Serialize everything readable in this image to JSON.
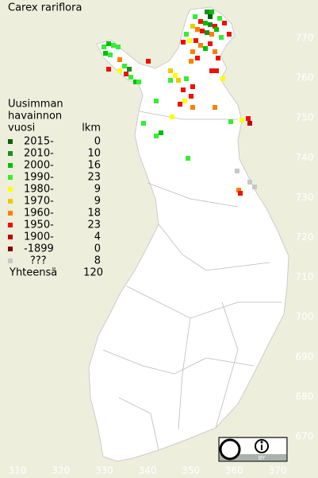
{
  "map": {
    "title": "Carex rariflora",
    "legend_heading": [
      "Uusimman",
      "havainnon"
    ],
    "legend_col_label": "vuosi",
    "legend_col_count": "lkm",
    "legend": [
      {
        "label": "2015-",
        "count": 0,
        "color": "#006400"
      },
      {
        "label": "2010-",
        "count": 10,
        "color": "#1e8c1e"
      },
      {
        "label": "2000-",
        "count": 16,
        "color": "#00c000"
      },
      {
        "label": "1990-",
        "count": 23,
        "color": "#33ee33"
      },
      {
        "label": "1980-",
        "count": 9,
        "color": "#ffff00"
      },
      {
        "label": "1970-",
        "count": 9,
        "color": "#f0c800"
      },
      {
        "label": "1960-",
        "count": 18,
        "color": "#ff7f00"
      },
      {
        "label": "1950-",
        "count": 23,
        "color": "#ee1100"
      },
      {
        "label": "1900-",
        "count": 4,
        "color": "#c00000"
      },
      {
        "label": "-1899",
        "count": 0,
        "color": "#800000"
      },
      {
        "label": "???",
        "count": 8,
        "color": "#c8c8c8"
      }
    ],
    "total_label": "Yhteensä",
    "total": 120,
    "x_labels": [
      310,
      320,
      330,
      340,
      350,
      360,
      370
    ],
    "y_labels": [
      770,
      760,
      750,
      740,
      730,
      720,
      710,
      700,
      690,
      680,
      670
    ],
    "license": "BY"
  }
}
